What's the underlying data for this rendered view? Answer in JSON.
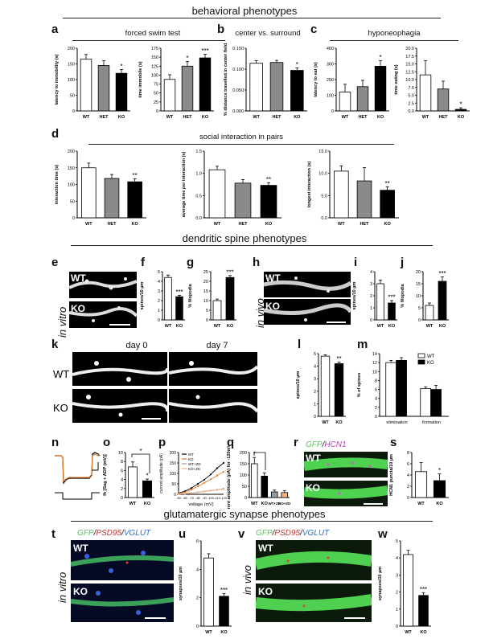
{
  "sections": {
    "behavioral": "behavioral phenotypes",
    "dendritic": "dendritic spine phenotypes",
    "glutamatergic": "glutamatergic synapse phenotypes"
  },
  "panels": {
    "a": "a",
    "b": "b",
    "c": "c",
    "d": "d",
    "e": "e",
    "f": "f",
    "g": "g",
    "h": "h",
    "i": "i",
    "j": "j",
    "k": "k",
    "l": "l",
    "m": "m",
    "n": "n",
    "o": "o",
    "p": "p",
    "q": "q",
    "r": "r",
    "s": "s",
    "t": "t",
    "u": "u",
    "v": "v",
    "w": "w"
  },
  "group_titles": {
    "a": "forced swim test",
    "b": "center vs. surround",
    "c": "hyponeophagia",
    "d": "social interaction in pairs"
  },
  "micro": {
    "in_vitro": "in vitro",
    "in_vivo": "in vivo",
    "wt": "WT",
    "ko": "KO",
    "day0": "day 0",
    "day7": "day 7",
    "gfp": "GFP",
    "hcn1": "HCN1",
    "psd95": "PSD95",
    "vglut": "VGLUT",
    "slash": "/"
  },
  "colors": {
    "wt": "#ffffff",
    "het": "#8a8a8a",
    "ko": "#000000",
    "wt_trace": "#000000",
    "ko_trace": "#e07b2a",
    "wt_zd": "#9a9a9a",
    "ko_zd": "#f0b58a"
  },
  "chart_data": [
    {
      "id": "a1",
      "type": "bar",
      "categories": [
        "WT",
        "HET",
        "KO"
      ],
      "values": [
        165,
        145,
        120
      ],
      "errors": [
        15,
        15,
        12
      ],
      "ylim": [
        0,
        200
      ],
      "yticks": [
        0,
        50,
        100,
        150,
        200
      ],
      "ylabel": "latency to immobility (s)",
      "stars": [
        "",
        "",
        "*"
      ]
    },
    {
      "id": "a2",
      "type": "bar",
      "categories": [
        "WT",
        "HET",
        "KO"
      ],
      "values": [
        88,
        125,
        148
      ],
      "errors": [
        13,
        13,
        10
      ],
      "ylim": [
        0,
        175
      ],
      "yticks": [
        0,
        25,
        50,
        75,
        100,
        125,
        150,
        175
      ],
      "ylabel": "time immobile (s)",
      "stars": [
        "",
        "*",
        "***"
      ]
    },
    {
      "id": "b",
      "type": "bar",
      "categories": [
        "WT",
        "HET",
        "KO"
      ],
      "values": [
        0.114,
        0.116,
        0.097
      ],
      "errors": [
        0.006,
        0.005,
        0.006
      ],
      "ylim": [
        0,
        0.15
      ],
      "yticks": [
        0.0,
        0.05,
        0.1,
        0.15
      ],
      "ytick_labels": [
        "0.000",
        "0.050",
        "0.100",
        "0.150"
      ],
      "ylabel": "% distance travelled in center field",
      "stars": [
        "",
        "",
        "*"
      ]
    },
    {
      "id": "c1",
      "type": "bar",
      "categories": [
        "WT",
        "HET",
        "KO"
      ],
      "values": [
        120,
        155,
        285
      ],
      "errors": [
        50,
        40,
        35
      ],
      "ylim": [
        0,
        400
      ],
      "yticks": [
        0,
        100,
        200,
        300,
        400
      ],
      "ylabel": "latency to eat (s)",
      "stars": [
        "",
        "",
        "*"
      ]
    },
    {
      "id": "c2",
      "type": "bar",
      "categories": [
        "WT",
        "HET",
        "KO"
      ],
      "values": [
        11.5,
        7,
        0.5
      ],
      "errors": [
        4.5,
        2.5,
        0.5
      ],
      "ylim": [
        0,
        20
      ],
      "yticks": [
        0,
        2.5,
        5,
        7.5,
        10,
        12.5,
        15,
        17.5,
        20
      ],
      "ytick_labels": [
        "0.0",
        "2.5",
        "5.0",
        "7.5",
        "10.0",
        "12.5",
        "15.0",
        "17.5",
        "20.0"
      ],
      "ylabel": "time eating (s)",
      "stars": [
        "",
        "",
        "*"
      ]
    },
    {
      "id": "d1",
      "type": "bar",
      "categories": [
        "WT",
        "HET",
        "KO"
      ],
      "values": [
        150,
        118,
        108
      ],
      "errors": [
        14,
        12,
        9
      ],
      "ylim": [
        0,
        200
      ],
      "yticks": [
        0,
        50,
        100,
        150,
        200
      ],
      "ylabel": "interaction time (s)",
      "stars": [
        "",
        "",
        "**"
      ]
    },
    {
      "id": "d2",
      "type": "bar",
      "categories": [
        "WT",
        "HET",
        "KO"
      ],
      "values": [
        1.08,
        0.78,
        0.73
      ],
      "errors": [
        0.08,
        0.08,
        0.06
      ],
      "ylim": [
        0,
        1.5
      ],
      "yticks": [
        0,
        0.5,
        1.0,
        1.5
      ],
      "ytick_labels": [
        "0.0",
        "0.5",
        "1.0",
        "1.5"
      ],
      "ylabel": "average time per interaction (s)",
      "stars": [
        "",
        "",
        "**"
      ]
    },
    {
      "id": "d3",
      "type": "bar",
      "categories": [
        "WT",
        "HET",
        "KO"
      ],
      "values": [
        10.5,
        8.3,
        6.2
      ],
      "errors": [
        1.2,
        3.0,
        0.8
      ],
      "ylim": [
        0,
        15
      ],
      "yticks": [
        0,
        5,
        10,
        15
      ],
      "ytick_labels": [
        "0.0",
        "5.0",
        "10.0",
        "15.0"
      ],
      "ylabel": "longest interaction (s)",
      "stars": [
        "",
        "",
        "**"
      ]
    },
    {
      "id": "f",
      "type": "bar",
      "categories": [
        "WT",
        "KO"
      ],
      "values": [
        4.4,
        2.4
      ],
      "errors": [
        0.25,
        0.15
      ],
      "ylim": [
        0,
        5
      ],
      "yticks": [
        0,
        1,
        2,
        3,
        4,
        5
      ],
      "ylabel": "spines/10 µm",
      "stars": [
        "",
        "***"
      ]
    },
    {
      "id": "g",
      "type": "bar",
      "categories": [
        "WT",
        "KO"
      ],
      "values": [
        10,
        22
      ],
      "errors": [
        0.8,
        1.0
      ],
      "ylim": [
        0,
        25
      ],
      "yticks": [
        0,
        5,
        10,
        15,
        20,
        25
      ],
      "ylabel": "% filopodia",
      "stars": [
        "",
        "***"
      ]
    },
    {
      "id": "i",
      "type": "bar",
      "categories": [
        "WT",
        "KO"
      ],
      "values": [
        3.0,
        1.4
      ],
      "errors": [
        0.3,
        0.2
      ],
      "ylim": [
        0,
        4
      ],
      "yticks": [
        0,
        1,
        2,
        3,
        4
      ],
      "ylabel": "spines/10 µm",
      "stars": [
        "",
        "***"
      ]
    },
    {
      "id": "j",
      "type": "bar",
      "categories": [
        "WT",
        "KO"
      ],
      "values": [
        6,
        16
      ],
      "errors": [
        1.0,
        1.8
      ],
      "ylim": [
        0,
        20
      ],
      "yticks": [
        0,
        5,
        10,
        15,
        20
      ],
      "ylabel": "% filopodia",
      "stars": [
        "",
        "***"
      ]
    },
    {
      "id": "l",
      "type": "bar",
      "categories": [
        "WT",
        "KO"
      ],
      "values": [
        4.8,
        4.2
      ],
      "errors": [
        0.1,
        0.12
      ],
      "ylim": [
        0,
        5
      ],
      "yticks": [
        0,
        1,
        2,
        3,
        4,
        5
      ],
      "ylabel": "spines/10 µm",
      "stars": [
        "",
        "**"
      ]
    },
    {
      "id": "m",
      "type": "bar",
      "categories": [
        "elimination",
        "formation"
      ],
      "series": [
        {
          "name": "WT",
          "values": [
            12,
            6.2
          ],
          "errors": [
            0.5,
            0.4
          ]
        },
        {
          "name": "KO",
          "values": [
            12.5,
            6
          ],
          "errors": [
            0.6,
            0.9
          ]
        }
      ],
      "ylim": [
        0,
        14
      ],
      "yticks": [
        0,
        2,
        4,
        6,
        8,
        10,
        12,
        14
      ],
      "ylabel": "% of spines",
      "legend": "top-right"
    },
    {
      "id": "o",
      "type": "bar",
      "categories": [
        "WT",
        "KO"
      ],
      "values": [
        6.8,
        3.7
      ],
      "errors": [
        1.1,
        0.4
      ],
      "ylim": [
        0,
        10
      ],
      "yticks": [
        0,
        2,
        4,
        6,
        8,
        10
      ],
      "ylabel": "Ih [Sag + ADP (mV)]",
      "stars": [
        "",
        "*"
      ]
    },
    {
      "id": "p",
      "type": "line",
      "x": [
        -50,
        -60,
        -70,
        -80,
        -90,
        -100,
        -110,
        -120
      ],
      "series": [
        {
          "name": "WT",
          "values": [
            5,
            15,
            30,
            50,
            70,
            95,
            125,
            150
          ]
        },
        {
          "name": "KO",
          "values": [
            3,
            10,
            22,
            38,
            55,
            72,
            90,
            108
          ]
        },
        {
          "name": "WT+ZD",
          "values": [
            1,
            3,
            6,
            10,
            14,
            18,
            22,
            27
          ]
        },
        {
          "name": "KO+ZD",
          "values": [
            1,
            3,
            5,
            9,
            13,
            17,
            21,
            25
          ]
        }
      ],
      "xlabel": "voltage (mV)",
      "ylabel": "current amplitude (pA)",
      "ylim": [
        0,
        200
      ],
      "yticks": [
        0,
        50,
        100,
        150,
        200
      ],
      "legend": "top-left"
    },
    {
      "id": "q",
      "type": "bar",
      "categories": [
        "WT",
        "KO",
        "WT+ZD",
        "KO+ZD"
      ],
      "values": [
        150,
        95,
        25,
        22
      ],
      "errors": [
        28,
        15,
        8,
        8
      ],
      "ylim": [
        0,
        200
      ],
      "yticks": [
        0,
        50,
        100,
        150,
        200
      ],
      "ylabel": "current amplitude (pA) for -120mV step",
      "stars": [
        "*",
        "",
        "",
        ""
      ]
    },
    {
      "id": "s",
      "type": "bar",
      "categories": [
        "WT",
        "KO"
      ],
      "values": [
        4.6,
        3.0
      ],
      "errors": [
        1.6,
        1.2
      ],
      "ylim": [
        0,
        8
      ],
      "yticks": [
        0,
        2,
        4,
        6,
        8
      ],
      "ylabel": "HCN1 puncta/10 µm",
      "stars": [
        "",
        "*"
      ]
    },
    {
      "id": "u",
      "type": "bar",
      "categories": [
        "WT",
        "KO"
      ],
      "values": [
        4.8,
        2.1
      ],
      "errors": [
        0.3,
        0.2
      ],
      "ylim": [
        0,
        6
      ],
      "yticks": [
        0,
        2,
        4,
        6
      ],
      "ylabel": "synapses/10 µm",
      "stars": [
        "",
        "***"
      ]
    },
    {
      "id": "w",
      "type": "bar",
      "categories": [
        "WT",
        "KO"
      ],
      "values": [
        4.2,
        1.8
      ],
      "errors": [
        0.25,
        0.15
      ],
      "ylim": [
        0,
        5
      ],
      "yticks": [
        0,
        1,
        2,
        3,
        4,
        5
      ],
      "ylabel": "synapses/10 µm",
      "stars": [
        "",
        "***"
      ]
    }
  ]
}
